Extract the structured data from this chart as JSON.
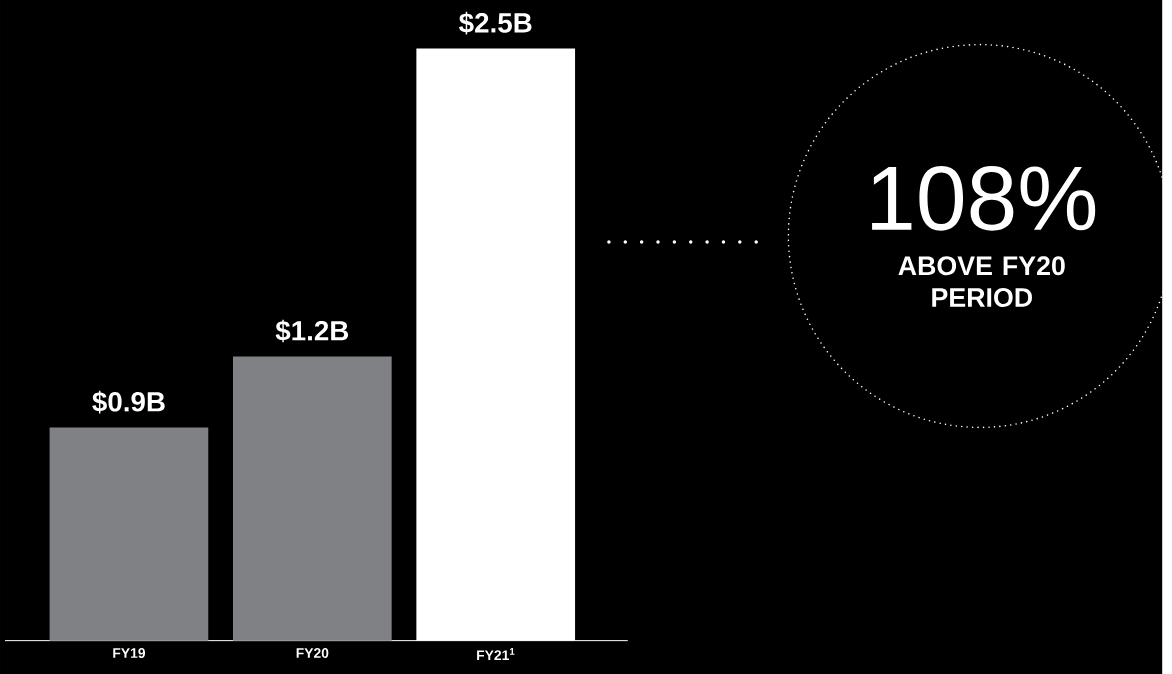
{
  "chart_data": {
    "type": "bar",
    "categories": [
      "FY19",
      "FY20",
      "FY21$^{1}$"
    ],
    "values": [
      0.9,
      1.2,
      2.5
    ],
    "colors": [
      "#808184",
      "#808184",
      "#ffffff"
    ],
    "value_labels": [
      "$0.9B",
      "$1.2B",
      "$2.5B"
    ],
    "annotations": [
      "108%",
      "ABOVE FY20 PERIOD"
    ]
  }
}
